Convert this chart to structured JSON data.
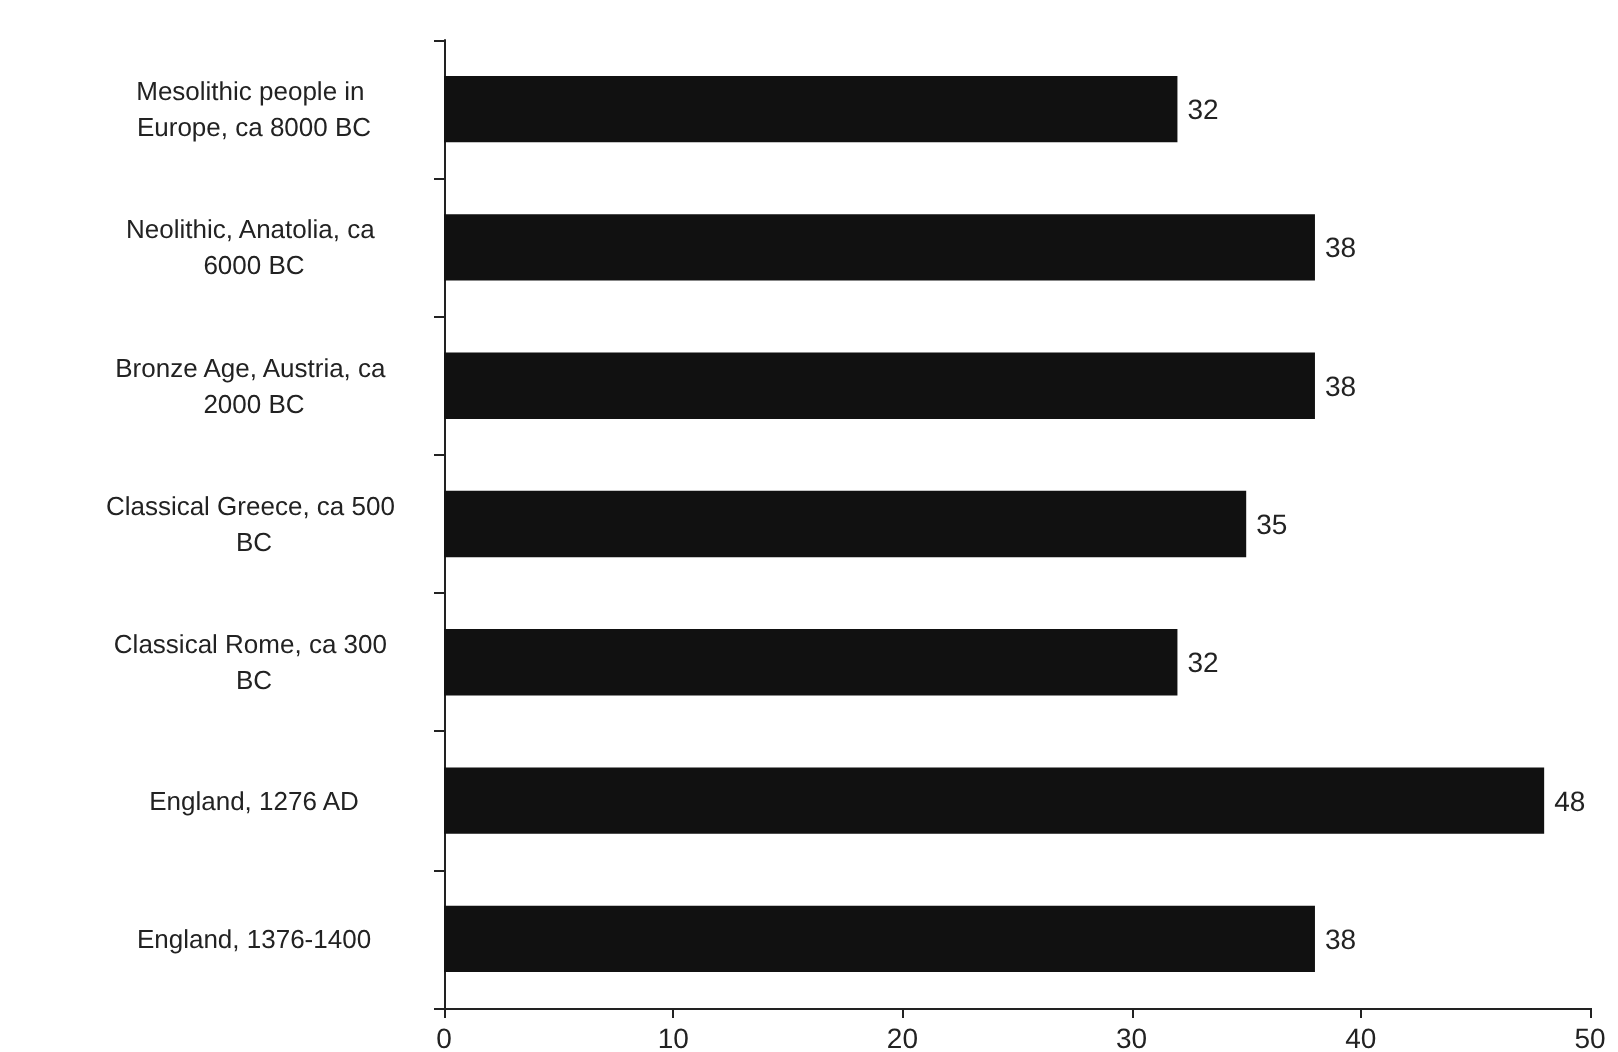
{
  "chart_data": {
    "type": "bar",
    "orientation": "horizontal",
    "categories": [
      "Mesolithic people in Europe, ca 8000 BC",
      "Neolithic, Anatolia, ca 6000 BC",
      "Bronze Age, Austria, ca 2000 BC",
      "Classical Greece, ca 500 BC",
      "Classical Rome, ca 300 BC",
      "England, 1276 AD",
      "England, 1376-1400"
    ],
    "values": [
      32,
      38,
      38,
      35,
      32,
      48,
      38
    ],
    "color": "#111111",
    "xlim": [
      0,
      50
    ],
    "xticks": [
      0,
      10,
      20,
      30,
      40,
      50
    ],
    "data_labels": true,
    "grid": false
  }
}
